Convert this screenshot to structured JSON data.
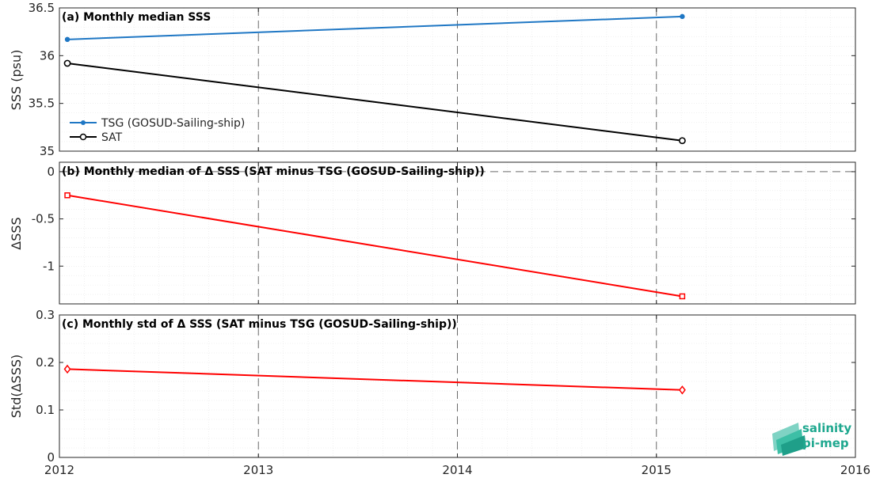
{
  "chart_data": [
    {
      "type": "line",
      "title": "(a) Monthly median SSS",
      "ylabel": "SSS (psu)",
      "xlim": [
        2012,
        2016
      ],
      "ylim": [
        35,
        36.5
      ],
      "yticks": [
        "35",
        "35.5",
        "36",
        "36.5"
      ],
      "grid": true,
      "legend_position": "bottom-left",
      "series": [
        {
          "name": "TSG (GOSUD-Sailing-ship)",
          "color": "#1f77c4",
          "marker": "dot",
          "x": [
            2012.04,
            2015.13
          ],
          "values": [
            36.17,
            36.41
          ]
        },
        {
          "name": "SAT",
          "color": "#000000",
          "marker": "circle",
          "x": [
            2012.04,
            2015.13
          ],
          "values": [
            35.92,
            35.11
          ]
        }
      ]
    },
    {
      "type": "line",
      "title": "(b) Monthly median of Δ SSS (SAT minus TSG (GOSUD-Sailing-ship))",
      "ylabel": "ΔSSS",
      "xlim": [
        2012,
        2016
      ],
      "ylim": [
        -1.4,
        0.1
      ],
      "yticks": [
        "-1",
        "-0.5",
        "0"
      ],
      "grid": true,
      "series": [
        {
          "color": "#ff0000",
          "marker": "square",
          "x": [
            2012.04,
            2015.13
          ],
          "values": [
            -0.25,
            -1.32
          ]
        }
      ]
    },
    {
      "type": "line",
      "title": "(c) Monthly std of Δ SSS (SAT minus TSG (GOSUD-Sailing-ship))",
      "ylabel": "Std(ΔSSS)",
      "xlim": [
        2012,
        2016
      ],
      "ylim": [
        0,
        0.3
      ],
      "yticks": [
        "0",
        "0.1",
        "0.2",
        "0.3"
      ],
      "xticks": [
        "2012",
        "2013",
        "2014",
        "2015",
        "2016"
      ],
      "grid": true,
      "series": [
        {
          "color": "#ff0000",
          "marker": "diamond",
          "x": [
            2012.04,
            2015.13
          ],
          "values": [
            0.186,
            0.142
          ]
        }
      ]
    }
  ],
  "logo": {
    "line1": "salinity",
    "line2": "pi-mep"
  }
}
